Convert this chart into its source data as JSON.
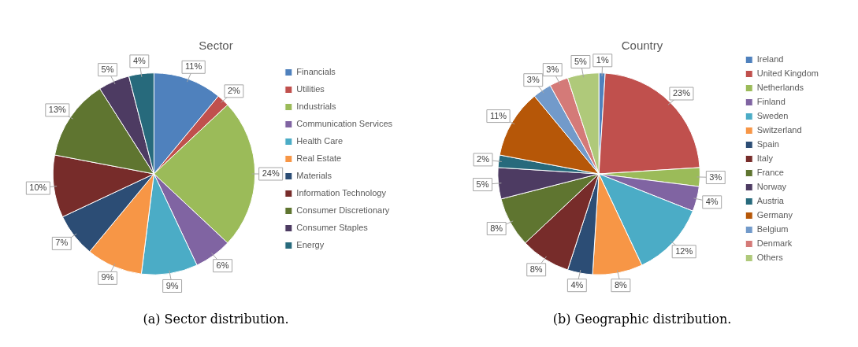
{
  "chart_data": [
    {
      "type": "pie",
      "title": "Sector",
      "categories": [
        "Financials",
        "Utilities",
        "Industrials",
        "Communication Services",
        "Health Care",
        "Real Estate",
        "Materials",
        "Information Technology",
        "Consumer Discretionary",
        "Consumer Staples",
        "Energy"
      ],
      "values": [
        11,
        2,
        24,
        6,
        9,
        9,
        7,
        10,
        13,
        5,
        4
      ],
      "colors": [
        "#4f81bd",
        "#c0504d",
        "#9bbb59",
        "#8064a2",
        "#4bacc6",
        "#f79646",
        "#2c4d75",
        "#772c2a",
        "#5f7530",
        "#4d3b62",
        "#276a7c"
      ],
      "value_labels": [
        "11%",
        "2%",
        "24%",
        "6%",
        "9%",
        "9%",
        "7%",
        "10%",
        "13%",
        "5%",
        "4%"
      ],
      "legend": "right",
      "annotations": [
        "(a) Sector distribution."
      ]
    },
    {
      "type": "pie",
      "title": "Country",
      "categories": [
        "Ireland",
        "United Kingdom",
        "Netherlands",
        "Finland",
        "Sweden",
        "Switzerland",
        "Spain",
        "Italy",
        "France",
        "Norway",
        "Austria",
        "Germany",
        "Belgium",
        "Denmark",
        "Others"
      ],
      "values": [
        1,
        23,
        3,
        4,
        12,
        8,
        4,
        8,
        8,
        5,
        2,
        11,
        3,
        3,
        5
      ],
      "colors": [
        "#4f81bd",
        "#c0504d",
        "#9bbb59",
        "#8064a2",
        "#4bacc6",
        "#f79646",
        "#2c4d75",
        "#772c2a",
        "#5f7530",
        "#4d3b62",
        "#276a7c",
        "#b65708",
        "#729aca",
        "#d47a78",
        "#afc97a"
      ],
      "value_labels": [
        "1%",
        "23%",
        "3%",
        "4%",
        "12%",
        "8%",
        "4%",
        "8%",
        "8%",
        "5%",
        "2%",
        "11%",
        "3%",
        "3%",
        "5%"
      ],
      "legend": "right",
      "annotations": [
        "(b) Geographic distribution."
      ]
    }
  ]
}
